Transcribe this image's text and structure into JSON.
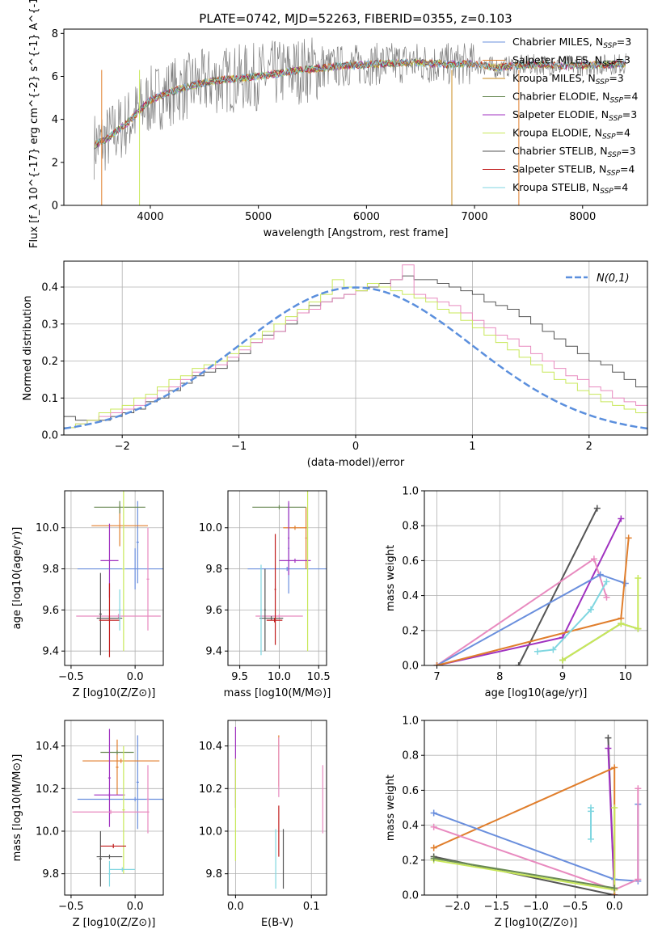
{
  "chart_data": [
    {
      "id": "spectrum",
      "type": "line",
      "title": "PLATE=0742, MJD=52263, FIBERID=0355, z=0.103",
      "xlabel": "wavelength [Angstrom, rest frame]",
      "ylabel": "Flux [f_λ 10^{-17} erg cm^{-2} s^{-1} A^{-1}]",
      "xlim": [
        3200,
        8600
      ],
      "ylim": [
        0,
        8.2
      ],
      "xticks": [
        4000,
        5000,
        6000,
        7000,
        8000
      ],
      "yticks": [
        0,
        2,
        4,
        6,
        8
      ],
      "grid": false,
      "legend_position": "right",
      "data_color": "#808080",
      "continuum_x": [
        3480,
        3600,
        3700,
        3800,
        3900,
        4000,
        4200,
        4400,
        4600,
        4800,
        5000,
        5200,
        5400,
        5600,
        5800,
        6000,
        6200,
        6400,
        6600,
        6800,
        7000,
        7200,
        7400,
        7600,
        7800,
        8000,
        8200,
        8400
      ],
      "continuum_y": [
        2.8,
        3.1,
        3.5,
        3.9,
        4.4,
        4.9,
        5.3,
        5.6,
        5.8,
        5.9,
        6.0,
        6.15,
        6.3,
        6.4,
        6.5,
        6.55,
        6.6,
        6.65,
        6.6,
        6.55,
        6.6,
        6.4,
        6.5,
        6.55,
        6.5,
        6.5,
        6.55,
        6.6
      ],
      "series": [
        {
          "name": "Chabrier MILES, N_SSP=3",
          "color": "#6a8fdd"
        },
        {
          "name": "Salpeter MILES, N_SSP=3",
          "color": "#e07e2c"
        },
        {
          "name": "Kroupa MILES, N_SSP=3",
          "color": "#c98a1a"
        },
        {
          "name": "Chabrier ELODIE, N_SSP=4",
          "color": "#6a8a55"
        },
        {
          "name": "Salpeter ELODIE, N_SSP=3",
          "color": "#a032c0"
        },
        {
          "name": "Kroupa ELODIE, N_SSP=4",
          "color": "#c8e85a"
        },
        {
          "name": "Chabrier STELIB, N_SSP=3",
          "color": "#555555"
        },
        {
          "name": "Salpeter STELIB, N_SSP=4",
          "color": "#c01c1c"
        },
        {
          "name": "Kroupa STELIB, N_SSP=4",
          "color": "#7fd6e0"
        }
      ]
    },
    {
      "id": "residuals",
      "type": "bar",
      "xlabel": "(data-model)/error",
      "ylabel": "Normed distribution",
      "xlim": [
        -2.5,
        2.5
      ],
      "ylim": [
        0,
        0.47
      ],
      "xticks": [
        -2,
        -1,
        0,
        1,
        2
      ],
      "yticks": [
        0.0,
        0.1,
        0.2,
        0.3,
        0.4
      ],
      "grid": true,
      "legend_position": "top-right",
      "gaussian": {
        "name": "N(0,1)",
        "color": "#5b8fdd"
      },
      "bin_width": 0.1,
      "bin_start": -2.5,
      "histograms": [
        {
          "color": "#555555",
          "values": [
            0.05,
            0.04,
            0.04,
            0.04,
            0.05,
            0.06,
            0.07,
            0.09,
            0.1,
            0.12,
            0.14,
            0.16,
            0.17,
            0.18,
            0.2,
            0.22,
            0.25,
            0.27,
            0.28,
            0.3,
            0.33,
            0.35,
            0.36,
            0.37,
            0.38,
            0.39,
            0.4,
            0.41,
            0.42,
            0.43,
            0.42,
            0.42,
            0.41,
            0.4,
            0.39,
            0.38,
            0.36,
            0.35,
            0.34,
            0.32,
            0.3,
            0.28,
            0.26,
            0.24,
            0.22,
            0.2,
            0.19,
            0.17,
            0.15,
            0.13
          ]
        },
        {
          "color": "#e88abf",
          "values": [
            0.02,
            0.03,
            0.04,
            0.05,
            0.06,
            0.07,
            0.08,
            0.1,
            0.12,
            0.13,
            0.15,
            0.17,
            0.18,
            0.19,
            0.21,
            0.23,
            0.25,
            0.26,
            0.28,
            0.31,
            0.33,
            0.34,
            0.36,
            0.37,
            0.38,
            0.39,
            0.41,
            0.4,
            0.42,
            0.46,
            0.38,
            0.37,
            0.36,
            0.35,
            0.33,
            0.31,
            0.29,
            0.27,
            0.26,
            0.24,
            0.22,
            0.2,
            0.18,
            0.16,
            0.15,
            0.13,
            0.12,
            0.1,
            0.09,
            0.08
          ]
        },
        {
          "color": "#c8e85a",
          "values": [
            0.02,
            0.03,
            0.04,
            0.06,
            0.07,
            0.08,
            0.1,
            0.11,
            0.13,
            0.15,
            0.16,
            0.18,
            0.19,
            0.2,
            0.22,
            0.24,
            0.26,
            0.28,
            0.3,
            0.32,
            0.34,
            0.36,
            0.38,
            0.42,
            0.4,
            0.39,
            0.41,
            0.4,
            0.39,
            0.38,
            0.37,
            0.36,
            0.34,
            0.33,
            0.31,
            0.29,
            0.27,
            0.25,
            0.23,
            0.21,
            0.19,
            0.17,
            0.15,
            0.14,
            0.12,
            0.11,
            0.09,
            0.08,
            0.07,
            0.06
          ]
        }
      ]
    },
    {
      "id": "age_vs_Z",
      "type": "scatter",
      "xlabel": "Z [log10(Z/Z⊙)]",
      "ylabel": "age  [log10(age/yr)]",
      "xlim": [
        -0.55,
        0.22
      ],
      "ylim": [
        9.33,
        10.18
      ],
      "xticks": [
        -0.5,
        0.0
      ],
      "yticks": [
        9.4,
        9.6,
        9.8,
        10.0
      ],
      "grid": true,
      "points": [
        {
          "color": "#6a8fdd",
          "x": 0.0,
          "y": 9.8,
          "xerr": 0.45,
          "yerr": 0.1
        },
        {
          "color": "#6a8fdd",
          "x": 0.02,
          "y": 9.93,
          "xerr": 0.01,
          "yerr": 0.2
        },
        {
          "color": "#e07e2c",
          "x": -0.12,
          "y": 10.01,
          "xerr": 0.22,
          "yerr": 0.1
        },
        {
          "color": "#6a8a55",
          "x": -0.12,
          "y": 10.1,
          "xerr": 0.2,
          "yerr": 0.03
        },
        {
          "color": "#a032c0",
          "x": -0.2,
          "y": 9.84,
          "xerr": 0.07,
          "yerr": 0.18
        },
        {
          "color": "#c8e85a",
          "x": -0.09,
          "y": 9.8,
          "xerr": 0.01,
          "yerr": 0.4
        },
        {
          "color": "#e88abf",
          "x": -0.13,
          "y": 9.57,
          "xerr": 0.33,
          "yerr": 0.01
        },
        {
          "color": "#e88abf",
          "x": 0.1,
          "y": 9.75,
          "xerr": 0.01,
          "yerr": 0.25
        },
        {
          "color": "#555555",
          "x": -0.2,
          "y": 9.56,
          "xerr": 0.1,
          "yerr": 0.01
        },
        {
          "color": "#555555",
          "x": -0.27,
          "y": 9.58,
          "xerr": 0.01,
          "yerr": 0.2
        },
        {
          "color": "#c01c1c",
          "x": -0.2,
          "y": 9.55,
          "xerr": 0.08,
          "yerr": 0.18
        },
        {
          "color": "#7fd6e0",
          "x": -0.12,
          "y": 9.6,
          "xerr": 0.01,
          "yerr": 0.1
        }
      ]
    },
    {
      "id": "age_vs_mass",
      "type": "scatter",
      "xlabel": "mass [log10(M/M⊙)]",
      "ylabel": "",
      "xlim": [
        9.35,
        10.6
      ],
      "ylim": [
        9.33,
        10.18
      ],
      "xticks": [
        9.5,
        10.0,
        10.5
      ],
      "yticks": [
        9.4,
        9.6,
        9.8,
        10.0
      ],
      "grid": true,
      "points": [
        {
          "color": "#6a8fdd",
          "x": 10.1,
          "y": 9.8,
          "xerr": 0.5,
          "yerr": 0.01
        },
        {
          "color": "#6a8fdd",
          "x": 10.12,
          "y": 9.9,
          "xerr": 0.01,
          "yerr": 0.22
        },
        {
          "color": "#e07e2c",
          "x": 10.2,
          "y": 10.0,
          "xerr": 0.15,
          "yerr": 0.01
        },
        {
          "color": "#e07e2c",
          "x": 10.34,
          "y": 9.95,
          "xerr": 0.01,
          "yerr": 0.15
        },
        {
          "color": "#6a8a55",
          "x": 10.0,
          "y": 10.1,
          "xerr": 0.34,
          "yerr": 0.01
        },
        {
          "color": "#a032c0",
          "x": 10.2,
          "y": 9.84,
          "xerr": 0.2,
          "yerr": 0.01
        },
        {
          "color": "#a032c0",
          "x": 10.12,
          "y": 9.95,
          "xerr": 0.01,
          "yerr": 0.18
        },
        {
          "color": "#c8e85a",
          "x": 10.36,
          "y": 9.8,
          "xerr": 0.01,
          "yerr": 0.4
        },
        {
          "color": "#e88abf",
          "x": 10.0,
          "y": 9.57,
          "xerr": 0.3,
          "yerr": 0.01
        },
        {
          "color": "#555555",
          "x": 9.9,
          "y": 9.56,
          "xerr": 0.15,
          "yerr": 0.01
        },
        {
          "color": "#555555",
          "x": 9.82,
          "y": 9.6,
          "xerr": 0.01,
          "yerr": 0.2
        },
        {
          "color": "#c01c1c",
          "x": 9.94,
          "y": 9.55,
          "xerr": 0.1,
          "yerr": 0.01
        },
        {
          "color": "#c01c1c",
          "x": 9.95,
          "y": 9.7,
          "xerr": 0.01,
          "yerr": 0.27
        },
        {
          "color": "#7fd6e0",
          "x": 9.77,
          "y": 9.6,
          "xerr": 0.01,
          "yerr": 0.22
        }
      ]
    },
    {
      "id": "massweight_vs_age",
      "type": "line",
      "xlabel": "age  [log10(age/yr)]",
      "ylabel": "mass weight",
      "xlim": [
        6.8,
        10.35
      ],
      "ylim": [
        0,
        1.0
      ],
      "xticks": [
        7,
        8,
        9,
        10
      ],
      "yticks": [
        0.0,
        0.2,
        0.4,
        0.6,
        0.8,
        1.0
      ],
      "grid": true,
      "series": [
        {
          "color": "#555555",
          "x": [
            8.3,
            9.55
          ],
          "y": [
            0.0,
            0.9
          ]
        },
        {
          "color": "#a032c0",
          "x": [
            7.0,
            9.0,
            9.93
          ],
          "y": [
            0.0,
            0.16,
            0.84
          ]
        },
        {
          "color": "#e88abf",
          "x": [
            7.0,
            9.5,
            9.7
          ],
          "y": [
            0.0,
            0.61,
            0.39
          ]
        },
        {
          "color": "#6a8fdd",
          "x": [
            7.0,
            9.6,
            10.0
          ],
          "y": [
            0.0,
            0.52,
            0.47
          ]
        },
        {
          "color": "#e07e2c",
          "x": [
            7.0,
            9.93,
            10.05
          ],
          "y": [
            0.0,
            0.27,
            0.73
          ]
        },
        {
          "color": "#6a8a55",
          "x": [
            9.0,
            9.93,
            10.2
          ],
          "y": [
            0.03,
            0.24,
            0.21
          ]
        },
        {
          "color": "#c8e85a",
          "x": [
            9.0,
            9.93,
            10.2,
            10.2
          ],
          "y": [
            0.03,
            0.24,
            0.21,
            0.5
          ]
        },
        {
          "color": "#7fd6e0",
          "x": [
            8.6,
            8.85,
            9.45,
            9.7
          ],
          "y": [
            0.08,
            0.09,
            0.32,
            0.48
          ]
        }
      ]
    },
    {
      "id": "mass_vs_Z",
      "type": "scatter",
      "xlabel": "Z [log10(Z/Z⊙)]",
      "ylabel": "mass [log10(M/M⊙)]",
      "xlim": [
        -0.55,
        0.22
      ],
      "ylim": [
        9.7,
        10.52
      ],
      "xticks": [
        -0.5,
        0.0
      ],
      "yticks": [
        9.8,
        10.0,
        10.2,
        10.4
      ],
      "grid": true,
      "points": [
        {
          "color": "#6a8fdd",
          "x": 0.0,
          "y": 10.15,
          "xerr": 0.45,
          "yerr": 0.01
        },
        {
          "color": "#6a8fdd",
          "x": 0.02,
          "y": 10.23,
          "xerr": 0.01,
          "yerr": 0.22
        },
        {
          "color": "#e07e2c",
          "x": -0.11,
          "y": 10.33,
          "xerr": 0.3,
          "yerr": 0.01
        },
        {
          "color": "#e07e2c",
          "x": -0.14,
          "y": 10.3,
          "xerr": 0.01,
          "yerr": 0.13
        },
        {
          "color": "#6a8a55",
          "x": -0.14,
          "y": 10.37,
          "xerr": 0.13,
          "yerr": 0.01
        },
        {
          "color": "#a032c0",
          "x": -0.2,
          "y": 10.17,
          "xerr": 0.12,
          "yerr": 0.01
        },
        {
          "color": "#a032c0",
          "x": -0.2,
          "y": 10.25,
          "xerr": 0.01,
          "yerr": 0.23
        },
        {
          "color": "#c8e85a",
          "x": -0.09,
          "y": 10.1,
          "xerr": 0.01,
          "yerr": 0.3
        },
        {
          "color": "#e88abf",
          "x": -0.19,
          "y": 10.09,
          "xerr": 0.3,
          "yerr": 0.01
        },
        {
          "color": "#e88abf",
          "x": 0.1,
          "y": 10.15,
          "xerr": 0.01,
          "yerr": 0.16
        },
        {
          "color": "#555555",
          "x": -0.2,
          "y": 9.88,
          "xerr": 0.1,
          "yerr": 0.01
        },
        {
          "color": "#555555",
          "x": -0.27,
          "y": 9.87,
          "xerr": 0.01,
          "yerr": 0.13
        },
        {
          "color": "#c01c1c",
          "x": -0.17,
          "y": 9.93,
          "xerr": 0.1,
          "yerr": 0.01
        },
        {
          "color": "#7fd6e0",
          "x": -0.1,
          "y": 9.82,
          "xerr": 0.1,
          "yerr": 0.01
        },
        {
          "color": "#7fd6e0",
          "x": -0.2,
          "y": 9.8,
          "xerr": 0.01,
          "yerr": 0.06
        }
      ]
    },
    {
      "id": "mass_vs_EBV",
      "type": "scatter",
      "xlabel": "E(B-V)",
      "ylabel": "",
      "xlim": [
        -0.01,
        0.12
      ],
      "ylim": [
        9.7,
        10.52
      ],
      "xticks": [
        0.0,
        0.1
      ],
      "yticks": [
        9.8,
        10.0,
        10.2,
        10.4
      ],
      "grid": true,
      "points": [
        {
          "color": "#a032c0",
          "x": 0.0,
          "y": 10.3,
          "xerr": 0.0,
          "yerr": 0.19
        },
        {
          "color": "#c8e85a",
          "x": 0.0,
          "y": 10.1,
          "xerr": 0.0,
          "yerr": 0.24
        },
        {
          "color": "#e07e2c",
          "x": 0.057,
          "y": 10.33,
          "xerr": 0.0,
          "yerr": 0.12
        },
        {
          "color": "#e88abf",
          "x": 0.057,
          "y": 10.3,
          "xerr": 0.0,
          "yerr": 0.14
        },
        {
          "color": "#c01c1c",
          "x": 0.057,
          "y": 10.0,
          "xerr": 0.0,
          "yerr": 0.12
        },
        {
          "color": "#7fd6e0",
          "x": 0.053,
          "y": 9.87,
          "xerr": 0.0,
          "yerr": 0.14
        },
        {
          "color": "#555555",
          "x": 0.063,
          "y": 9.87,
          "xerr": 0.0,
          "yerr": 0.14
        },
        {
          "color": "#e88abf",
          "x": 0.115,
          "y": 10.15,
          "xerr": 0.0,
          "yerr": 0.16
        }
      ]
    },
    {
      "id": "massweight_vs_Z",
      "type": "line",
      "xlabel": "Z [log10(Z/Z⊙)]",
      "ylabel": "mass weight",
      "xlim": [
        -2.42,
        0.42
      ],
      "ylim": [
        0,
        1.0
      ],
      "xticks": [
        -2.0,
        -1.5,
        -1.0,
        -0.5,
        0.0
      ],
      "yticks": [
        0.0,
        0.2,
        0.4,
        0.6,
        0.8,
        1.0
      ],
      "grid": true,
      "series": [
        {
          "color": "#555555",
          "x": [
            -2.3,
            0.0,
            -0.08
          ],
          "y": [
            0.22,
            0.0,
            0.9
          ]
        },
        {
          "color": "#a032c0",
          "x": [
            -0.08,
            0.0
          ],
          "y": [
            0.84,
            0.0
          ]
        },
        {
          "color": "#e07e2c",
          "x": [
            -2.3,
            0.0,
            0.0
          ],
          "y": [
            0.27,
            0.73,
            0.0
          ]
        },
        {
          "color": "#6a8fdd",
          "x": [
            -2.3,
            0.0,
            0.3,
            0.3
          ],
          "y": [
            0.47,
            0.09,
            0.08,
            0.52
          ]
        },
        {
          "color": "#e88abf",
          "x": [
            -2.3,
            0.0,
            0.3,
            0.3
          ],
          "y": [
            0.39,
            0.03,
            0.09,
            0.61
          ]
        },
        {
          "color": "#c8e85a",
          "x": [
            -2.3,
            0.0,
            0.0
          ],
          "y": [
            0.2,
            0.03,
            0.5
          ]
        },
        {
          "color": "#6a8a55",
          "x": [
            -2.3,
            0.0
          ],
          "y": [
            0.21,
            0.04
          ]
        },
        {
          "color": "#7fd6e0",
          "x": [
            -0.3,
            -0.3,
            -0.3
          ],
          "y": [
            0.32,
            0.48,
            0.5
          ]
        }
      ]
    }
  ]
}
